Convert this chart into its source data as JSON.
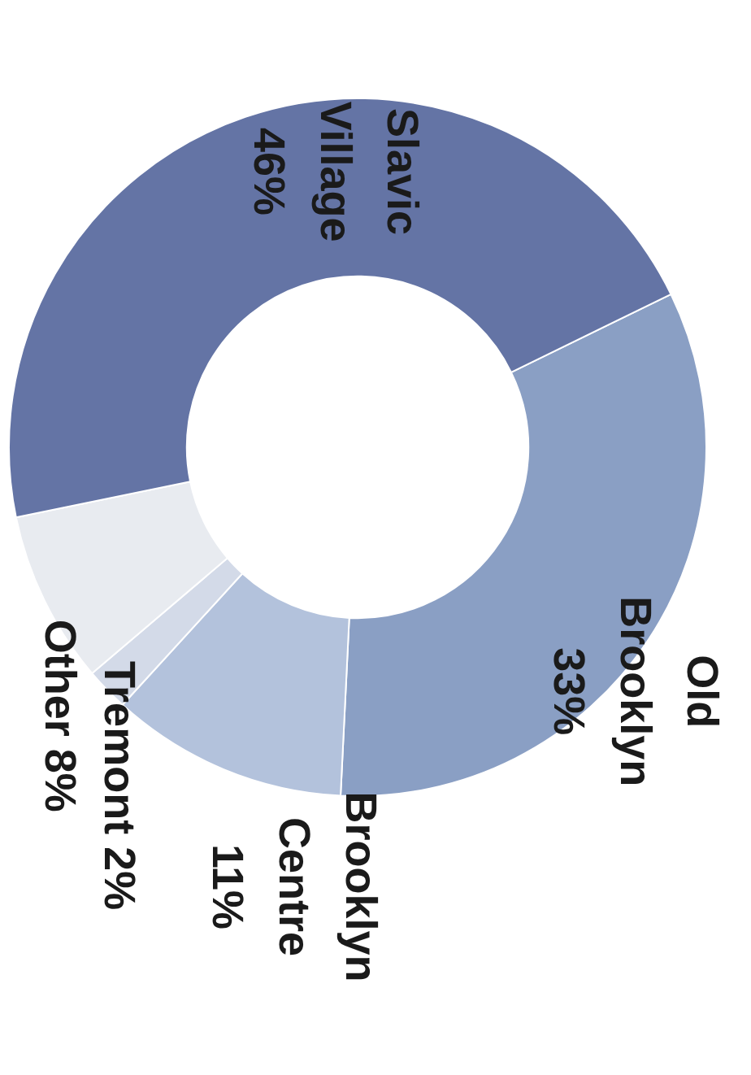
{
  "chart_data": {
    "type": "donut",
    "categories": [
      "Old Brooklyn",
      "Brooklyn Centre",
      "Tremont",
      "Other",
      "Slavic Village"
    ],
    "values": [
      33,
      11,
      2,
      8,
      46
    ],
    "colors": [
      "#8a9fc4",
      "#b3c2dc",
      "#d3dae8",
      "#e8ebf0",
      "#6474a5"
    ],
    "value_labels": [
      "33%",
      "11%",
      "2%",
      "8%",
      "46%"
    ],
    "legend": false
  }
}
